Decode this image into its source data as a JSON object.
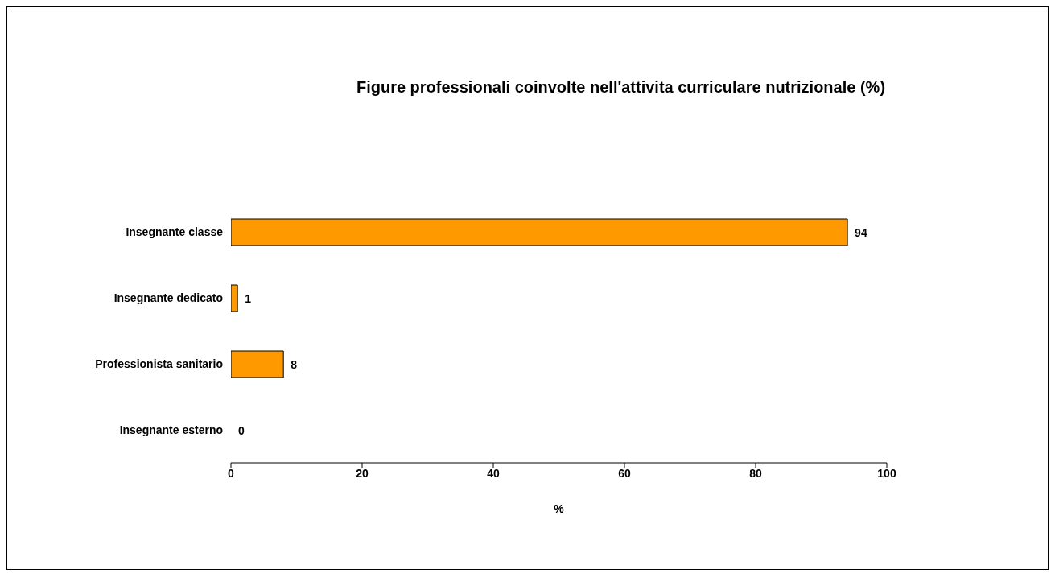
{
  "chart_data": {
    "type": "bar",
    "orientation": "horizontal",
    "title": "Figure professionali coinvolte nell'attivita curriculare nutrizionale (%)",
    "xlabel": "%",
    "categories": [
      "Insegnante classe",
      "Insegnante dedicato",
      "Professionista sanitario",
      "Insegnante esterno"
    ],
    "values": [
      94,
      1,
      8,
      0
    ],
    "color": "#ff9900",
    "xlim": [
      0,
      100
    ],
    "xticks": [
      0,
      20,
      40,
      60,
      80,
      100
    ],
    "data_labels": true,
    "grid": false,
    "legend": false
  }
}
